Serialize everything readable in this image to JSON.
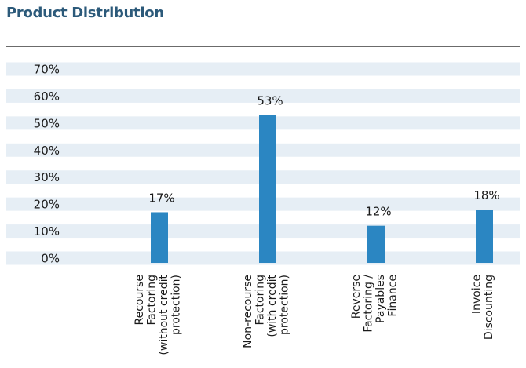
{
  "title": "Product Distribution",
  "colors": {
    "bar": "#2b86c2",
    "band": "#e6eef5",
    "title": "#2c5a7a"
  },
  "chart_data": {
    "type": "bar",
    "categories": [
      [
        "Recourse",
        "Factoring",
        "(without credit",
        "protection)"
      ],
      [
        "Non-recourse",
        "Factoring",
        "(with credit",
        "protection)"
      ],
      [
        "Reverse",
        "Factoring /",
        "Payables",
        "Finance"
      ],
      [
        "Invoice",
        "Discounting"
      ]
    ],
    "values": [
      17,
      53,
      12,
      18
    ],
    "data_labels": [
      "17%",
      "53%",
      "12%",
      "18%"
    ],
    "yticks": [
      "0%",
      "10%",
      "20%",
      "30%",
      "40%",
      "50%",
      "60%",
      "70%"
    ],
    "ylim": [
      0,
      70
    ],
    "grid": "horizontal bands"
  }
}
